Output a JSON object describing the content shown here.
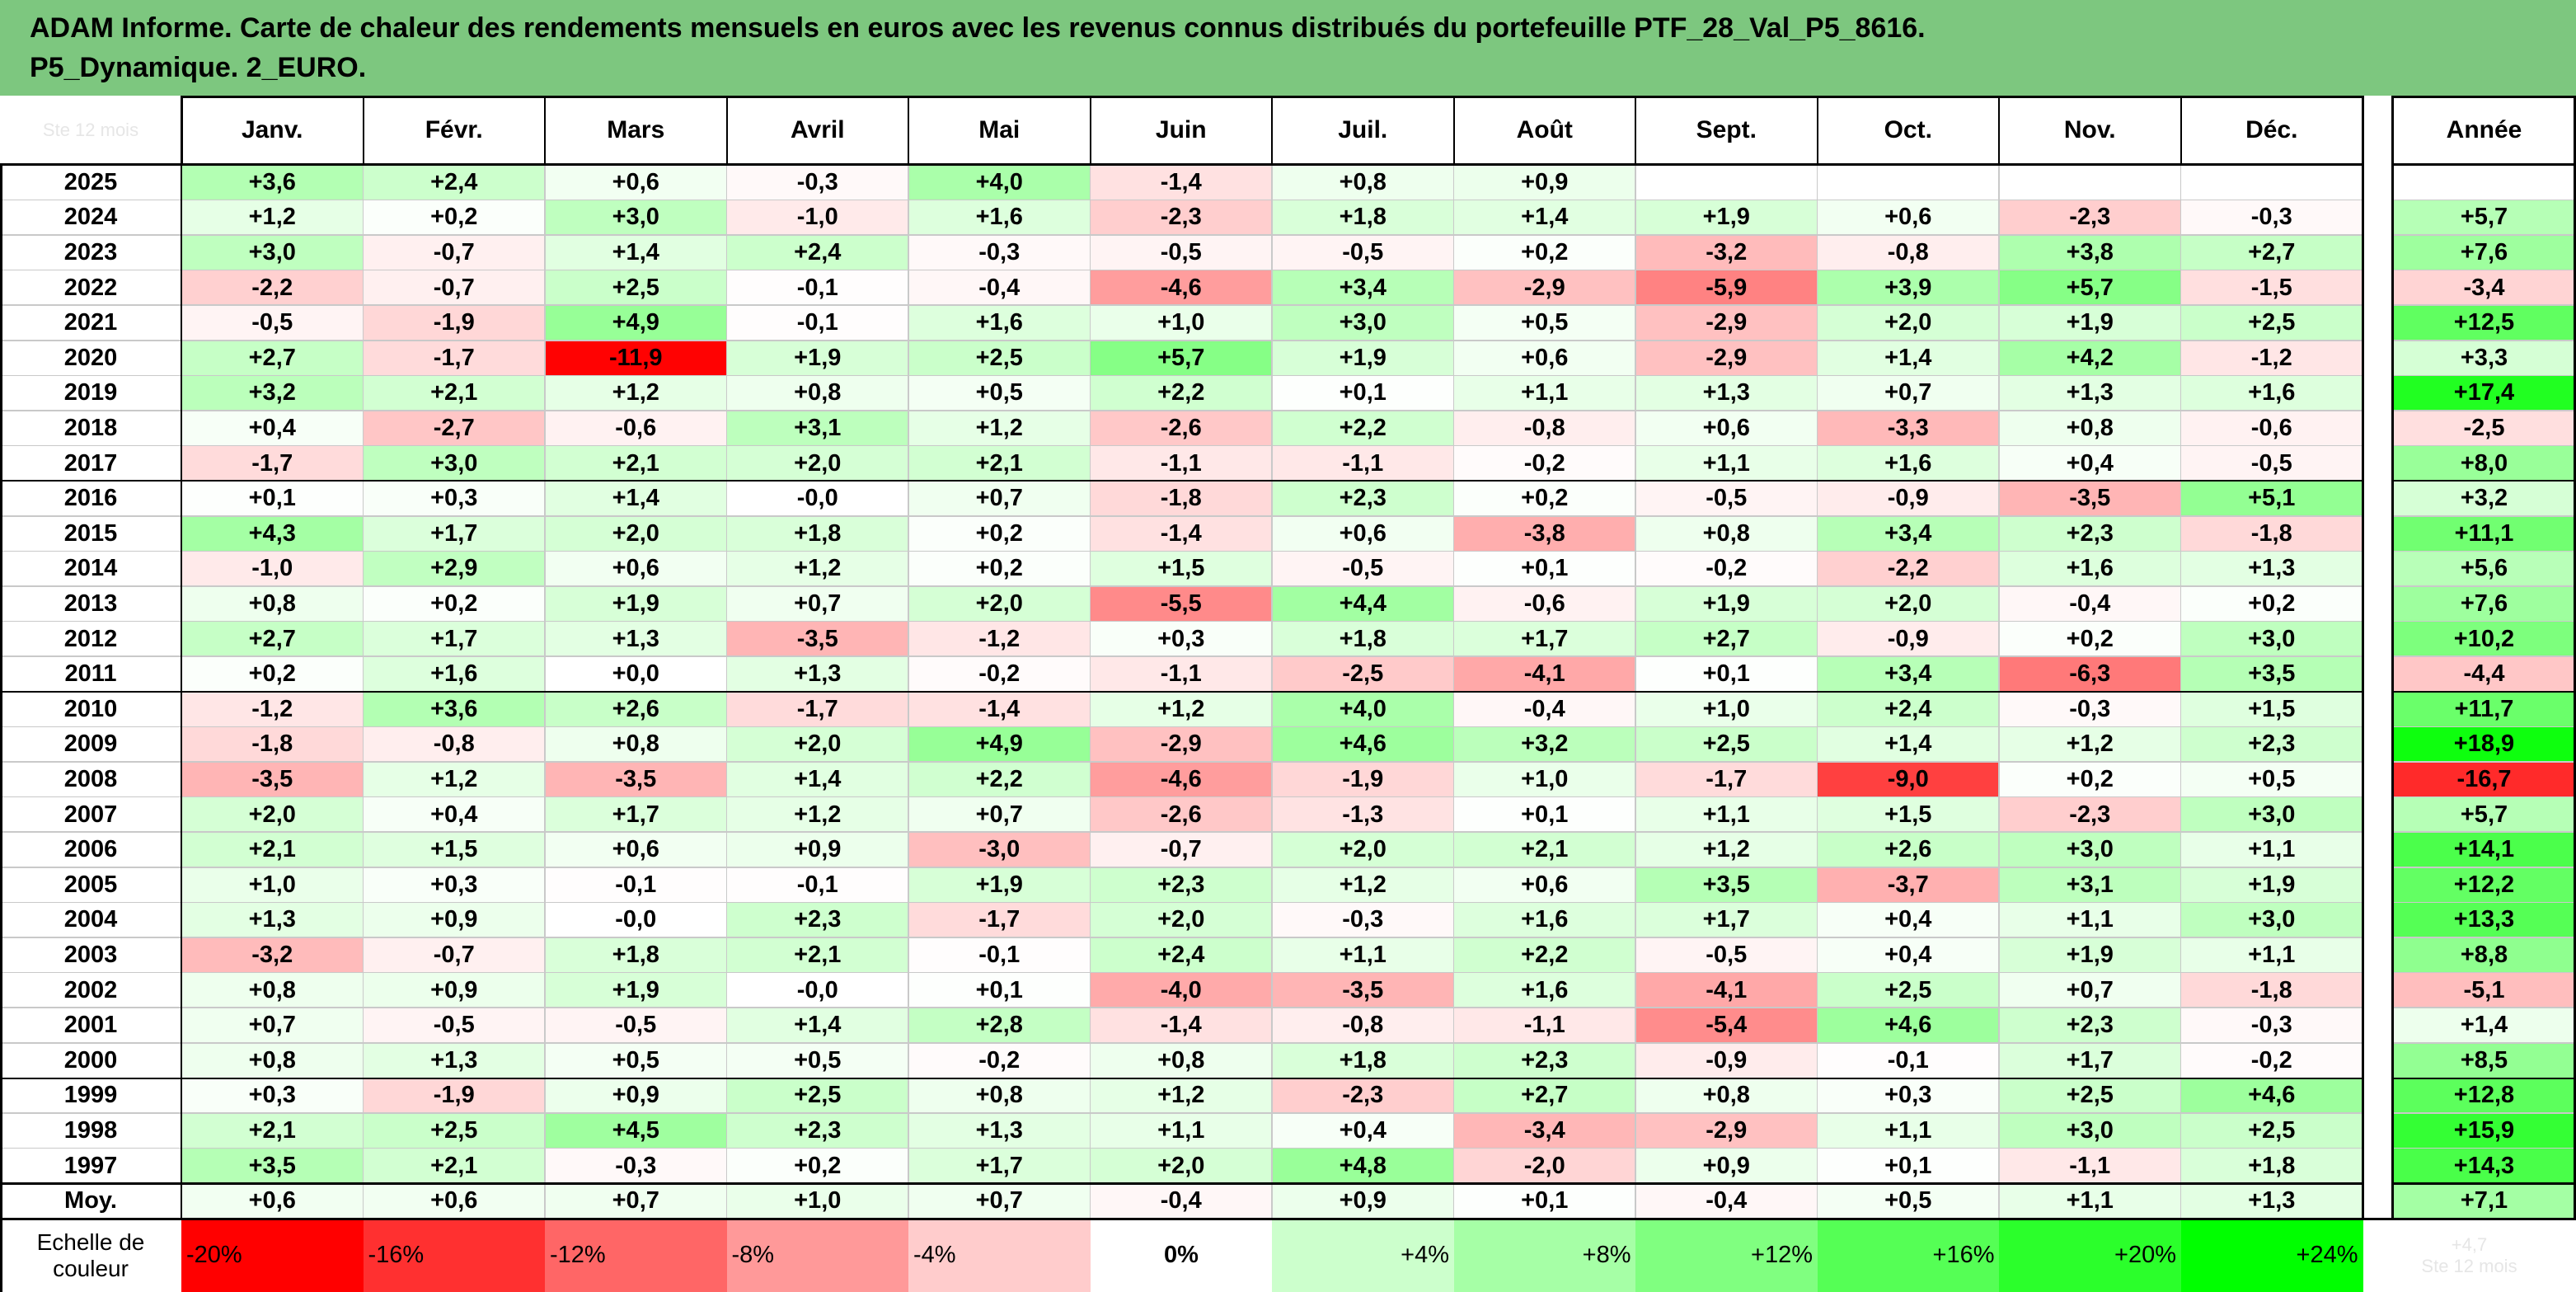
{
  "title": {
    "line1": "ADAM Informe. Carte de chaleur des rendements mensuels en euros avec les revenus connus distribués du portefeuille PTF_28_Val_P5_8616.",
    "line2": "P5_Dynamique. 2_EURO."
  },
  "corner_label": "Ste 12 mois",
  "chart_data": {
    "type": "heatmap",
    "months": [
      "Janv.",
      "Févr.",
      "Mars",
      "Avril",
      "Mai",
      "Juin",
      "Juil.",
      "Août",
      "Sept.",
      "Oct.",
      "Nov.",
      "Déc."
    ],
    "year_header": "Année",
    "rows": [
      {
        "year": "2025",
        "values": [
          3.6,
          2.4,
          0.6,
          -0.3,
          4.0,
          -1.4,
          0.8,
          0.9,
          null,
          null,
          null,
          null
        ],
        "annual": null
      },
      {
        "year": "2024",
        "values": [
          1.2,
          0.2,
          3.0,
          -1.0,
          1.6,
          -2.3,
          1.8,
          1.4,
          1.9,
          0.6,
          -2.3,
          -0.3
        ],
        "annual": 5.7
      },
      {
        "year": "2023",
        "values": [
          3.0,
          -0.7,
          1.4,
          2.4,
          -0.3,
          -0.5,
          -0.5,
          0.2,
          -3.2,
          -0.8,
          3.8,
          2.7
        ],
        "annual": 7.6
      },
      {
        "year": "2022",
        "values": [
          -2.2,
          -0.7,
          2.5,
          -0.1,
          -0.4,
          -4.6,
          3.4,
          -2.9,
          -5.9,
          3.9,
          5.7,
          -1.5
        ],
        "annual": -3.4
      },
      {
        "year": "2021",
        "values": [
          -0.5,
          -1.9,
          4.9,
          -0.1,
          1.6,
          1.0,
          3.0,
          0.5,
          -2.9,
          2.0,
          1.9,
          2.5
        ],
        "annual": 12.5
      },
      {
        "year": "2020",
        "values": [
          2.7,
          -1.7,
          -11.9,
          1.9,
          2.5,
          5.7,
          1.9,
          0.6,
          -2.9,
          1.4,
          4.2,
          -1.2
        ],
        "annual": 3.3
      },
      {
        "year": "2019",
        "values": [
          3.2,
          2.1,
          1.2,
          0.8,
          0.5,
          2.2,
          0.1,
          1.1,
          1.3,
          0.7,
          1.3,
          1.6
        ],
        "annual": 17.4
      },
      {
        "year": "2018",
        "values": [
          0.4,
          -2.7,
          -0.6,
          3.1,
          1.2,
          -2.6,
          2.2,
          -0.8,
          0.6,
          -3.3,
          0.8,
          -0.6
        ],
        "annual": -2.5
      },
      {
        "year": "2017",
        "values": [
          -1.7,
          3.0,
          2.1,
          2.0,
          2.1,
          -1.1,
          -1.1,
          -0.2,
          1.1,
          1.6,
          0.4,
          -0.5
        ],
        "annual": 8.0
      },
      {
        "year": "2016",
        "values": [
          0.1,
          0.3,
          1.4,
          "-0,0",
          0.7,
          -1.8,
          2.3,
          0.2,
          -0.5,
          -0.9,
          -3.5,
          5.1
        ],
        "annual": 3.2
      },
      {
        "year": "2015",
        "values": [
          4.3,
          1.7,
          2.0,
          1.8,
          0.2,
          -1.4,
          0.6,
          -3.8,
          0.8,
          3.4,
          2.3,
          -1.8
        ],
        "annual": 11.1
      },
      {
        "year": "2014",
        "values": [
          -1.0,
          2.9,
          0.6,
          1.2,
          0.2,
          1.5,
          -0.5,
          0.1,
          -0.2,
          -2.2,
          1.6,
          1.3
        ],
        "annual": 5.6
      },
      {
        "year": "2013",
        "values": [
          0.8,
          0.2,
          1.9,
          0.7,
          2.0,
          -5.5,
          4.4,
          -0.6,
          1.9,
          2.0,
          -0.4,
          0.2
        ],
        "annual": 7.6
      },
      {
        "year": "2012",
        "values": [
          2.7,
          1.7,
          1.3,
          -3.5,
          -1.2,
          0.3,
          1.8,
          1.7,
          2.7,
          -0.9,
          0.2,
          3.0
        ],
        "annual": 10.2
      },
      {
        "year": "2011",
        "values": [
          0.2,
          1.6,
          0.0,
          1.3,
          -0.2,
          -1.1,
          -2.5,
          -4.1,
          0.1,
          3.4,
          -6.3,
          3.5
        ],
        "annual": -4.4
      },
      {
        "year": "2010",
        "values": [
          -1.2,
          3.6,
          2.6,
          -1.7,
          -1.4,
          1.2,
          4.0,
          -0.4,
          1.0,
          2.4,
          -0.3,
          1.5
        ],
        "annual": 11.7
      },
      {
        "year": "2009",
        "values": [
          -1.8,
          -0.8,
          0.8,
          2.0,
          4.9,
          -2.9,
          4.6,
          3.2,
          2.5,
          1.4,
          1.2,
          2.3
        ],
        "annual": 18.9
      },
      {
        "year": "2008",
        "values": [
          -3.5,
          1.2,
          -3.5,
          1.4,
          2.2,
          -4.6,
          -1.9,
          1.0,
          -1.7,
          -9.0,
          0.2,
          0.5
        ],
        "annual": -16.7
      },
      {
        "year": "2007",
        "values": [
          2.0,
          0.4,
          1.7,
          1.2,
          0.7,
          -2.6,
          -1.3,
          0.1,
          1.1,
          1.5,
          -2.3,
          3.0
        ],
        "annual": 5.7
      },
      {
        "year": "2006",
        "values": [
          2.1,
          1.5,
          0.6,
          0.9,
          -3.0,
          -0.7,
          2.0,
          2.1,
          1.2,
          2.6,
          3.0,
          1.1
        ],
        "annual": 14.1
      },
      {
        "year": "2005",
        "values": [
          1.0,
          0.3,
          -0.1,
          -0.1,
          1.9,
          2.3,
          1.2,
          0.6,
          3.5,
          -3.7,
          3.1,
          1.9
        ],
        "annual": 12.2
      },
      {
        "year": "2004",
        "values": [
          1.3,
          0.9,
          "-0,0",
          2.3,
          -1.7,
          2.0,
          -0.3,
          1.6,
          1.7,
          0.4,
          1.1,
          3.0
        ],
        "annual": 13.3
      },
      {
        "year": "2003",
        "values": [
          -3.2,
          -0.7,
          1.8,
          2.1,
          -0.1,
          2.4,
          1.1,
          2.2,
          -0.5,
          0.4,
          1.9,
          1.1
        ],
        "annual": 8.8
      },
      {
        "year": "2002",
        "values": [
          0.8,
          0.9,
          1.9,
          "-0,0",
          0.1,
          -4.0,
          -3.5,
          1.6,
          -4.1,
          2.5,
          0.7,
          -1.8
        ],
        "annual": -5.1
      },
      {
        "year": "2001",
        "values": [
          0.7,
          -0.5,
          -0.5,
          1.4,
          2.8,
          -1.4,
          -0.8,
          -1.1,
          -5.4,
          4.6,
          2.3,
          -0.3
        ],
        "annual": 1.4
      },
      {
        "year": "2000",
        "values": [
          0.8,
          1.3,
          0.5,
          0.5,
          -0.2,
          0.8,
          1.8,
          2.3,
          -0.9,
          -0.1,
          1.7,
          -0.2
        ],
        "annual": 8.5
      },
      {
        "year": "1999",
        "values": [
          0.3,
          -1.9,
          0.9,
          2.5,
          0.8,
          1.2,
          -2.3,
          2.7,
          0.8,
          0.3,
          2.5,
          4.6
        ],
        "annual": 12.8
      },
      {
        "year": "1998",
        "values": [
          2.1,
          2.5,
          4.5,
          2.3,
          1.3,
          1.1,
          0.4,
          -3.4,
          -2.9,
          1.1,
          3.0,
          2.5
        ],
        "annual": 15.9
      },
      {
        "year": "1997",
        "values": [
          3.5,
          2.1,
          -0.3,
          0.2,
          1.7,
          2.0,
          4.8,
          -2.0,
          0.9,
          0.1,
          -1.1,
          1.8
        ],
        "annual": 14.3
      }
    ],
    "average": {
      "label": "Moy.",
      "values": [
        0.6,
        0.6,
        0.7,
        1.0,
        0.7,
        -0.4,
        0.9,
        0.1,
        -0.4,
        0.5,
        1.1,
        1.3
      ],
      "annual": 7.1
    },
    "scale": {
      "label_line1": "Echelle de",
      "label_line2": "couleur",
      "steps": [
        {
          "label": "-20%",
          "color": "#ff0000"
        },
        {
          "label": "-16%",
          "color": "#ff3030"
        },
        {
          "label": "-12%",
          "color": "#ff6666"
        },
        {
          "label": "-8%",
          "color": "#ff9999"
        },
        {
          "label": "-4%",
          "color": "#ffcccc"
        },
        {
          "label": "0%",
          "color": "#ffffff"
        },
        {
          "label": "+4%",
          "color": "#ccffcc"
        },
        {
          "label": "+8%",
          "color": "#a6ffa6"
        },
        {
          "label": "+12%",
          "color": "#80ff80"
        },
        {
          "label": "+16%",
          "color": "#55ff55"
        },
        {
          "label": "+20%",
          "color": "#2bff2b"
        },
        {
          "label": "+24%",
          "color": "#00ff00"
        }
      ],
      "ghost_line1": "+4,7",
      "ghost_line2": "Ste 12 mois"
    },
    "colors": {
      "title_bg": "#7dc77f",
      "grid": "#c9c9c9",
      "border": "#000000"
    }
  }
}
